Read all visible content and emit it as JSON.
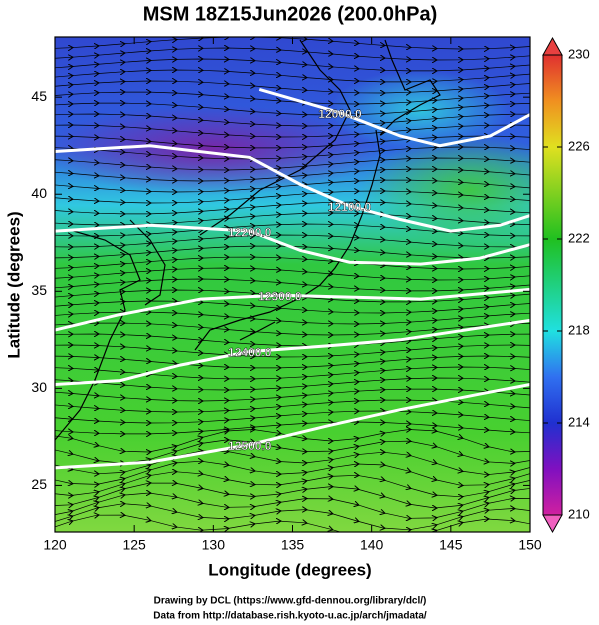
{
  "chart_data": {
    "type": "contour_map",
    "title": "MSM 18Z15Jun2026 (200.0hPa)",
    "xlabel": "Longitude (degrees)",
    "ylabel": "Latitude  (degrees)",
    "xlim": [
      120,
      150
    ],
    "ylim": [
      22.6,
      48.1
    ],
    "xticks": [
      120,
      125,
      130,
      135,
      140,
      145,
      150
    ],
    "yticks": [
      25,
      30,
      35,
      40,
      45
    ],
    "colorbar": {
      "clim": [
        210,
        230
      ],
      "ticks": [
        210,
        214,
        218,
        222,
        226,
        230
      ]
    },
    "contours": [
      {
        "level": 12000,
        "label": "12000.0",
        "lon": [
          132.9,
          138.0,
          141.8,
          144.3,
          147.5,
          150
        ],
        "lat": [
          45.4,
          44.2,
          43.0,
          42.5,
          43.0,
          44.1
        ]
      },
      {
        "level": 12100,
        "label": "12100.0",
        "lon": [
          120,
          126.0,
          132.3,
          135.5,
          138.6,
          141.8,
          145.0,
          148.1,
          150
        ],
        "lat": [
          42.2,
          42.5,
          41.9,
          40.5,
          39.4,
          38.7,
          38.1,
          38.4,
          38.9
        ]
      },
      {
        "level": 12200,
        "label": "12200.0",
        "lon": [
          120,
          126.0,
          132.3,
          135.5,
          138.6,
          143.1,
          146.8,
          150
        ],
        "lat": [
          38.1,
          38.4,
          38.1,
          37.1,
          36.5,
          36.4,
          36.7,
          37.4
        ]
      },
      {
        "level": 12300,
        "label": "12300.0",
        "lon": [
          120,
          124.1,
          129.2,
          134.2,
          138.6,
          143.1,
          150
        ],
        "lat": [
          33.0,
          33.8,
          34.6,
          34.8,
          34.7,
          34.6,
          35.1
        ]
      },
      {
        "level": 12400,
        "label": "12400.0",
        "lon": [
          120,
          124.1,
          127.9,
          132.3,
          137.4,
          141.8,
          150
        ],
        "lat": [
          30.2,
          30.4,
          31.2,
          31.9,
          32.2,
          32.5,
          33.5
        ]
      },
      {
        "level": 12500,
        "label": "12500.0",
        "lon": [
          120,
          126.0,
          132.3,
          137.4,
          141.8,
          146.8,
          150
        ],
        "lat": [
          25.9,
          26.2,
          27.1,
          28.1,
          28.9,
          29.7,
          30.2
        ]
      }
    ],
    "notes": [
      "Drawing by DCL (https://www.gfd-dennou.org/library/dcl/)",
      "Data from http://database.rish.kyoto-u.ac.jp/arch/jmadata/"
    ]
  }
}
